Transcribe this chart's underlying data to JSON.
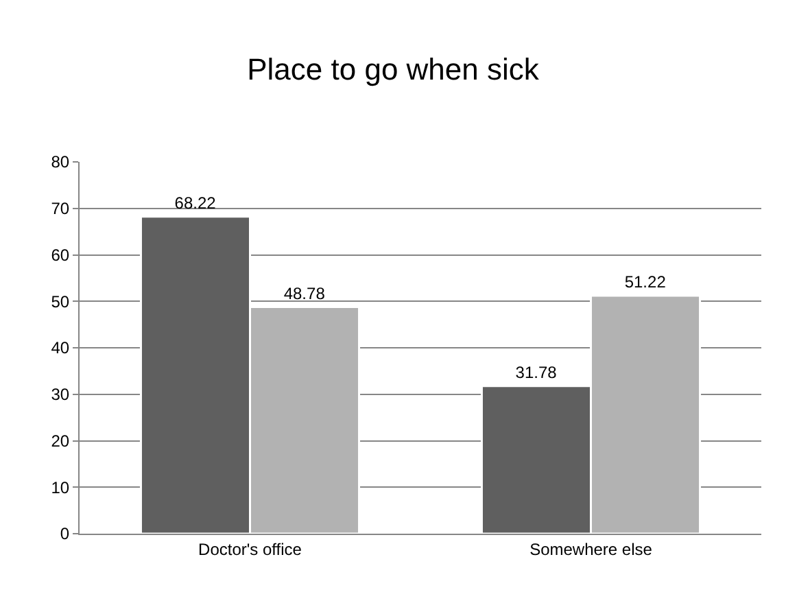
{
  "chart_data": {
    "type": "bar",
    "title": "Place to go when sick",
    "categories": [
      "Doctor's office",
      "Somewhere else"
    ],
    "series": [
      {
        "color": "#5f5f5f",
        "values": [
          68.22,
          31.78
        ]
      },
      {
        "color": "#b2b2b2",
        "values": [
          48.78,
          51.22
        ]
      }
    ],
    "ylim": [
      0,
      80
    ],
    "yticks": [
      0,
      10,
      20,
      30,
      40,
      50,
      60,
      70,
      80
    ],
    "grid": "y",
    "data_labels": true,
    "legend": false
  }
}
